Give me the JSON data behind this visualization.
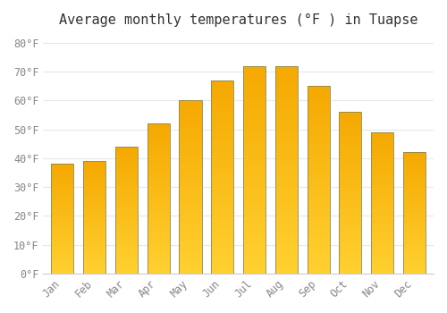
{
  "title": "Average monthly temperatures (°F ) in Tuapse",
  "months": [
    "Jan",
    "Feb",
    "Mar",
    "Apr",
    "May",
    "Jun",
    "Jul",
    "Aug",
    "Sep",
    "Oct",
    "Nov",
    "Dec"
  ],
  "values": [
    38,
    39,
    44,
    52,
    60,
    67,
    72,
    72,
    65,
    56,
    49,
    42
  ],
  "bar_color_top": "#F5A800",
  "bar_color_bottom": "#FFD030",
  "bar_edge_color": "#888855",
  "ylim": [
    0,
    83
  ],
  "yticks": [
    0,
    10,
    20,
    30,
    40,
    50,
    60,
    70,
    80
  ],
  "ylabel_suffix": "°F",
  "background_color": "#FFFFFF",
  "grid_color": "#E8E8E8",
  "title_fontsize": 11,
  "tick_fontsize": 8.5
}
